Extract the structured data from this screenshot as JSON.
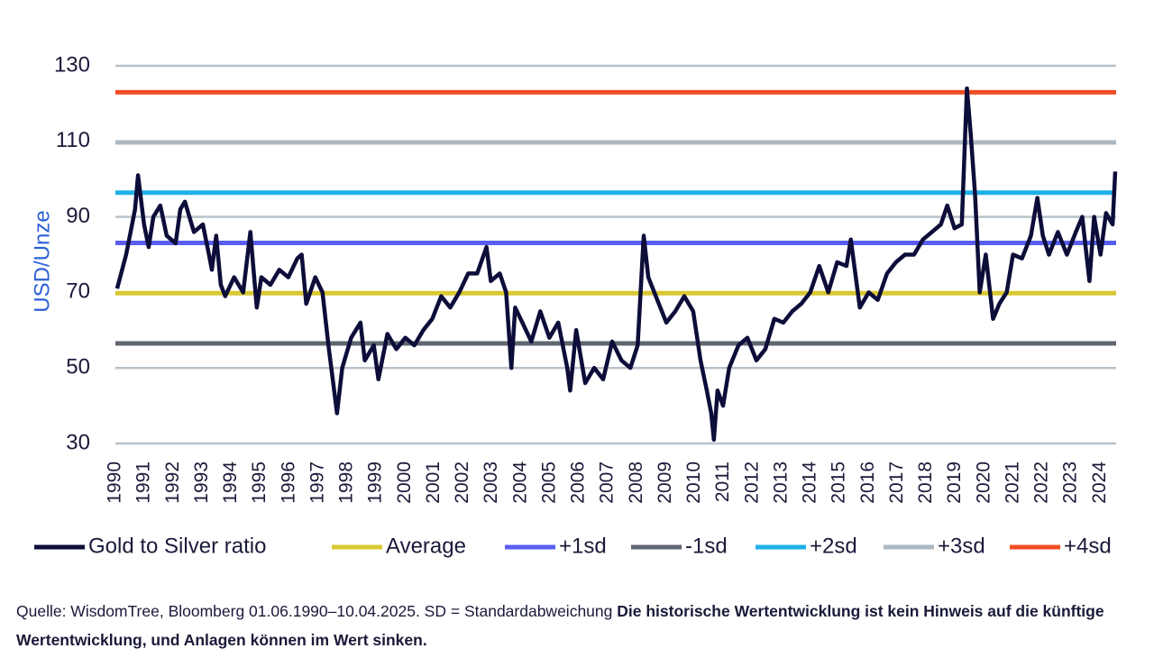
{
  "chart_data": {
    "type": "line",
    "y_label": "USD/Unze",
    "xlim": [
      1990,
      2024.55
    ],
    "xticks": [
      1990,
      1991,
      1992,
      1993,
      1994,
      1995,
      1996,
      1997,
      1998,
      1999,
      2000,
      2001,
      2002,
      2003,
      2004,
      2005,
      2006,
      2007,
      2008,
      2009,
      2010,
      2011,
      2012,
      2013,
      2014,
      2015,
      2016,
      2017,
      2018,
      2019,
      2020,
      2021,
      2022,
      2023,
      2024
    ],
    "ylim": [
      30,
      130
    ],
    "yticks": [
      30,
      50,
      70,
      90,
      110,
      130
    ],
    "grid": true,
    "x": [
      1990.06,
      1990.37,
      1990.68,
      1990.78,
      1990.99,
      1991.15,
      1991.31,
      1991.55,
      1991.77,
      1992.08,
      1992.24,
      1992.4,
      1992.71,
      1993.02,
      1993.23,
      1993.33,
      1993.48,
      1993.64,
      1993.79,
      1994.1,
      1994.41,
      1994.66,
      1994.88,
      1995.04,
      1995.35,
      1995.66,
      1995.97,
      1996.28,
      1996.43,
      1996.59,
      1996.9,
      1997.15,
      1997.37,
      1997.52,
      1997.65,
      1997.83,
      1998.14,
      1998.46,
      1998.61,
      1998.92,
      1999.08,
      1999.39,
      1999.7,
      2000.01,
      2000.32,
      2000.63,
      2000.94,
      2001.25,
      2001.56,
      2001.87,
      2002.18,
      2002.49,
      2002.81,
      2002.96,
      2003.27,
      2003.49,
      2003.67,
      2003.8,
      2004.05,
      2004.36,
      2004.67,
      2004.98,
      2005.29,
      2005.6,
      2005.7,
      2005.91,
      2006.22,
      2006.53,
      2006.84,
      2007.15,
      2007.47,
      2007.78,
      2008.03,
      2008.24,
      2008.4,
      2008.71,
      2009.02,
      2009.33,
      2009.64,
      2009.95,
      2010.2,
      2010.42,
      2010.57,
      2010.66,
      2010.79,
      2010.98,
      2011.19,
      2011.51,
      2011.82,
      2012.13,
      2012.44,
      2012.75,
      2013.06,
      2013.37,
      2013.68,
      2013.99,
      2014.3,
      2014.61,
      2014.92,
      2015.24,
      2015.39,
      2015.7,
      2016.01,
      2016.32,
      2016.64,
      2016.95,
      2017.26,
      2017.57,
      2017.88,
      2018.19,
      2018.5,
      2018.72,
      2018.97,
      2019.22,
      2019.4,
      2019.53,
      2019.68,
      2019.84,
      2020.05,
      2020.3,
      2020.52,
      2020.77,
      2020.99,
      2021.3,
      2021.61,
      2021.83,
      2022.02,
      2022.23,
      2022.54,
      2022.85,
      2023.16,
      2023.38,
      2023.63,
      2023.79,
      2024.01,
      2024.2,
      2024.43,
      2024.52
    ],
    "series": [
      {
        "name": "Gold to Silver ratio",
        "color": "#0d0d3a",
        "values": [
          71,
          80,
          92,
          101,
          88,
          82,
          90,
          93,
          85,
          83,
          92,
          94,
          86,
          88,
          80,
          76,
          85,
          72,
          69,
          74,
          70,
          86,
          66,
          74,
          72,
          76,
          74,
          79,
          80,
          67,
          74,
          70,
          55,
          46,
          38,
          50,
          58,
          62,
          52,
          56,
          47,
          59,
          55,
          58,
          56,
          60,
          63,
          69,
          66,
          70,
          75,
          75,
          82,
          73,
          75,
          70,
          50,
          66,
          62,
          57,
          65,
          58,
          62,
          50,
          44,
          60,
          46,
          50,
          47,
          57,
          52,
          50,
          56,
          85,
          74,
          68,
          62,
          65,
          69,
          65,
          52,
          44,
          38,
          31,
          44,
          40,
          50,
          56,
          58,
          52,
          55,
          63,
          62,
          65,
          67,
          70,
          77,
          70,
          78,
          77,
          84,
          66,
          70,
          68,
          75,
          78,
          80,
          80,
          84,
          86,
          88,
          93,
          87,
          88,
          124,
          112,
          96,
          70,
          80,
          63,
          67,
          70,
          80,
          79,
          85,
          95,
          85,
          80,
          86,
          80,
          86,
          90,
          73,
          90,
          80,
          91,
          88,
          102
        ]
      }
    ],
    "reference_lines": [
      {
        "name": "Average",
        "color": "#d9c832",
        "value": 69.8
      },
      {
        "name": "+1sd",
        "color": "#5a5ef0",
        "value": 83.1
      },
      {
        "name": "-1sd",
        "color": "#5f6770",
        "value": 56.5
      },
      {
        "name": "+2sd",
        "color": "#1fb0e8",
        "value": 96.4
      },
      {
        "name": "+3sd",
        "color": "#aeb9c2",
        "value": 109.7
      },
      {
        "name": "+4sd",
        "color": "#f04e23",
        "value": 123.0
      }
    ],
    "source": "Quelle: WisdomTree, Bloomberg 01.06.1990–10.04.2025. SD = Standardabweichung",
    "disclaimer": "Die historische Wertentwicklung ist kein Hinweis auf die künftige Wertentwicklung, und Anlagen können im Wert sinken."
  }
}
